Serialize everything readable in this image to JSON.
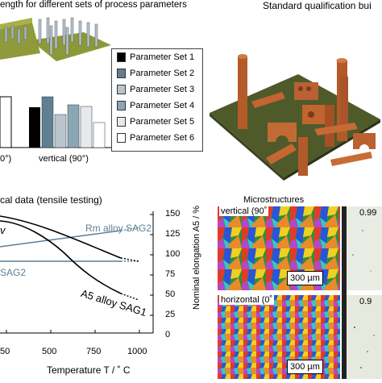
{
  "top_left": {
    "title": "ength  for different sets of process parameters",
    "legend": [
      {
        "label": "Parameter Set 1",
        "color": "#000000"
      },
      {
        "label": "Parameter Set 2",
        "color": "#5f7f93"
      },
      {
        "label": "Parameter Set 3",
        "color": "#b9c4cc"
      },
      {
        "label": "Parameter Set 4",
        "color": "#8aa7b6"
      },
      {
        "label": "Parameter Set 5",
        "color": "#e6eaee"
      },
      {
        "label": "Parameter Set 6",
        "color": "#ffffff"
      }
    ],
    "x_left_label": "0°)",
    "x_right_label": "vertical (90°)"
  },
  "top_right": {
    "title": "Standard  qualification bui"
  },
  "bottom_left": {
    "title": "cal data  (tensile testing)",
    "right_axis_label": "Nominal elongation A5 / %",
    "x_axis_label": "Temperature  T / ˚ C",
    "x_ticks": [
      "50",
      "500",
      "750",
      "1000"
    ],
    "y_ticks_right": [
      "150",
      "125",
      "100",
      "75",
      "50",
      "25",
      "0"
    ],
    "curve_labels": {
      "rm": "Rm alloy  SAG2",
      "sag2": "SAG2",
      "a5": "A5 alloy  SAG1",
      "w": "v"
    }
  },
  "bottom_right": {
    "title": "Microstructures",
    "vertical_label": "vertical  (90˚",
    "horizontal_label": "horizontal  (0˚",
    "scale_top": "300 µm",
    "scale_bottom": "300 µm",
    "density_top": "0.99",
    "density_bottom": "0.9"
  }
}
